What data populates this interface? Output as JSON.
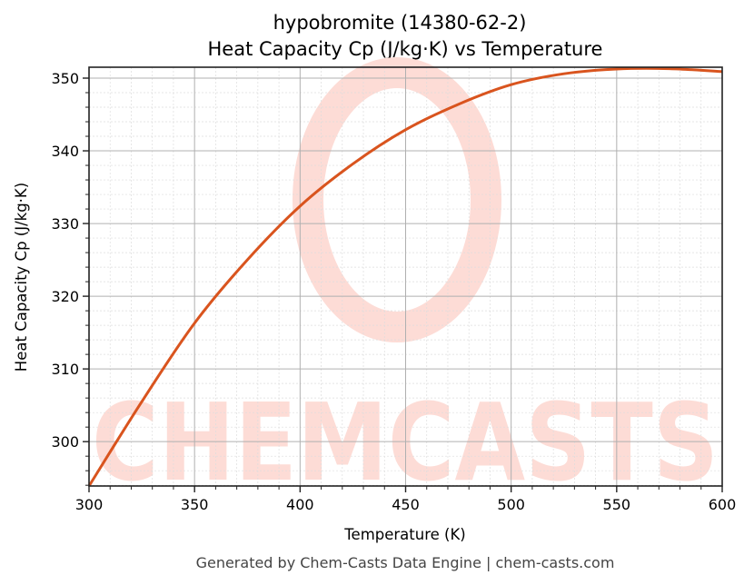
{
  "chart": {
    "title_line1": "hypobromite (14380-62-2)",
    "title_line2": "Heat Capacity Cp (J/kg·K) vs Temperature",
    "xlabel": "Temperature (K)",
    "ylabel": "Heat Capacity Cp (J/kg·K)",
    "footer": "Generated by Chem-Casts Data Engine | chem-casts.com",
    "watermark": "CHEMCASTS",
    "line_color": "#d9541e",
    "watermark_color": "#fddcd6"
  },
  "chart_data": {
    "type": "line",
    "title": "hypobromite (14380-62-2) Heat Capacity Cp (J/kg·K) vs Temperature",
    "xlabel": "Temperature (K)",
    "ylabel": "Heat Capacity Cp (J/kg·K)",
    "xlim": [
      300,
      600
    ],
    "ylim": [
      293.9,
      351.5
    ],
    "xticks": [
      300,
      350,
      400,
      450,
      500,
      550,
      600
    ],
    "yticks": [
      300,
      310,
      320,
      330,
      340,
      350
    ],
    "grid": true,
    "legend": null,
    "series": [
      {
        "name": "Cp",
        "x": [
          300,
          325,
          350,
          375,
          400,
          425,
          450,
          475,
          500,
          525,
          550,
          575,
          600
        ],
        "values": [
          293.9,
          305.5,
          316.3,
          325.0,
          332.4,
          338.2,
          342.9,
          346.4,
          349.1,
          350.6,
          351.25,
          351.3,
          350.9
        ]
      }
    ]
  }
}
